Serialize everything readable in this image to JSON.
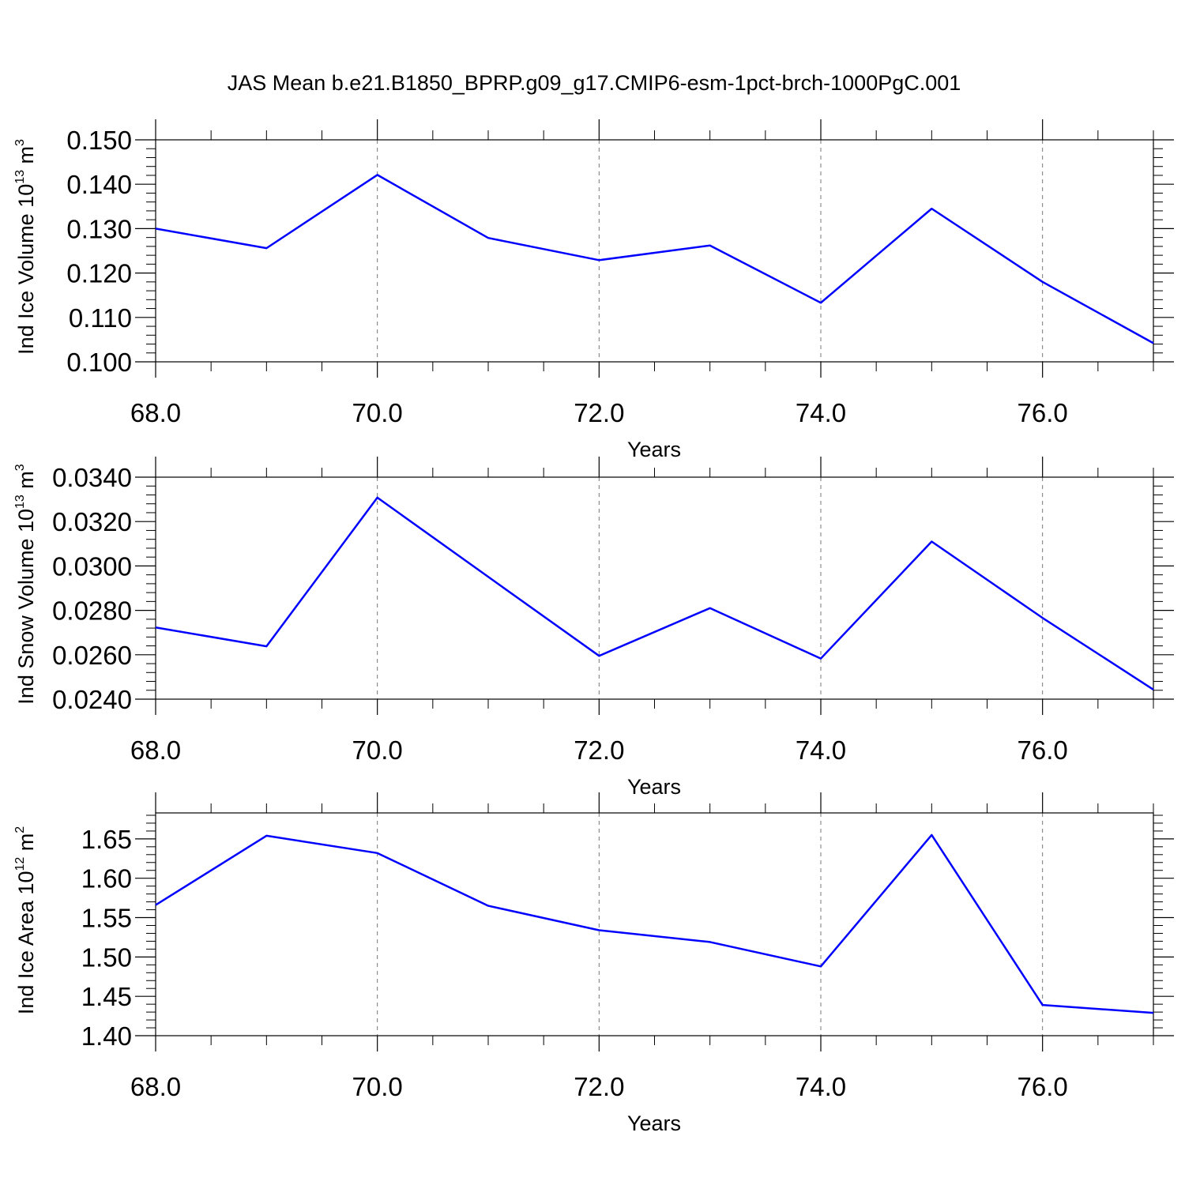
{
  "title": "JAS Mean b.e21.B1850_BPRP.g09_g17.CMIP6-esm-1pct-brch-1000PgC.001",
  "colors": {
    "series": "#0000ff",
    "axis": "#000000",
    "grid": "#777777"
  },
  "chart_data": [
    {
      "type": "line",
      "title": "",
      "xlabel": "Years",
      "ylabel": {
        "text": "Ind Ice Volume 10",
        "sup": "13",
        "unit": " m",
        "unit_sup": "3"
      },
      "xlim": [
        68,
        77
      ],
      "ylim": [
        0.1,
        0.15
      ],
      "xticks": [
        68,
        70,
        72,
        74,
        76
      ],
      "xtick_labels": [
        "68.0",
        "70.0",
        "72.0",
        "74.0",
        "76.0"
      ],
      "yticks": [
        0.1,
        0.11,
        0.12,
        0.13,
        0.14,
        0.15
      ],
      "ytick_labels": [
        "0.100",
        "0.110",
        "0.120",
        "0.130",
        "0.140",
        "0.150"
      ],
      "grid_x": true,
      "x": [
        68,
        69,
        70,
        71,
        72,
        73,
        74,
        75,
        76,
        77
      ],
      "series": [
        {
          "values": [
            0.13,
            0.1256,
            0.1421,
            0.1279,
            0.1229,
            0.1262,
            0.1133,
            0.1345,
            0.118,
            0.1042
          ]
        }
      ]
    },
    {
      "type": "line",
      "title": "",
      "xlabel": "Years",
      "ylabel": {
        "text": "Ind Snow Volume 10",
        "sup": "13",
        "unit": " m",
        "unit_sup": "3"
      },
      "xlim": [
        68,
        77
      ],
      "ylim": [
        0.024,
        0.034
      ],
      "xticks": [
        68,
        70,
        72,
        74,
        76
      ],
      "xtick_labels": [
        "68.0",
        "70.0",
        "72.0",
        "74.0",
        "76.0"
      ],
      "yticks": [
        0.024,
        0.026,
        0.028,
        0.03,
        0.032,
        0.034
      ],
      "ytick_labels": [
        "0.0240",
        "0.0260",
        "0.0280",
        "0.0300",
        "0.0320",
        "0.0340"
      ],
      "grid_x": true,
      "x": [
        68,
        69,
        70,
        71,
        72,
        73,
        74,
        75,
        76,
        77
      ],
      "series": [
        {
          "values": [
            0.02723,
            0.02638,
            0.03308,
            0.02951,
            0.02595,
            0.0281,
            0.02583,
            0.0311,
            0.02766,
            0.02443
          ]
        }
      ]
    },
    {
      "type": "line",
      "title": "",
      "xlabel": "Years",
      "ylabel": {
        "text": "Ind Ice Area 10",
        "sup": "12",
        "unit": " m",
        "unit_sup": "2"
      },
      "xlim": [
        68,
        77
      ],
      "ylim": [
        1.4,
        1.683
      ],
      "xticks": [
        68,
        70,
        72,
        74,
        76
      ],
      "xtick_labels": [
        "68.0",
        "70.0",
        "72.0",
        "74.0",
        "76.0"
      ],
      "yticks": [
        1.4,
        1.45,
        1.5,
        1.55,
        1.6,
        1.65
      ],
      "ytick_labels": [
        "1.40",
        "1.45",
        "1.50",
        "1.55",
        "1.60",
        "1.65"
      ],
      "grid_x": true,
      "x": [
        68,
        69,
        70,
        71,
        72,
        73,
        74,
        75,
        76,
        77
      ],
      "series": [
        {
          "values": [
            1.566,
            1.654,
            1.632,
            1.565,
            1.534,
            1.519,
            1.488,
            1.655,
            1.439,
            1.429
          ]
        }
      ]
    }
  ]
}
